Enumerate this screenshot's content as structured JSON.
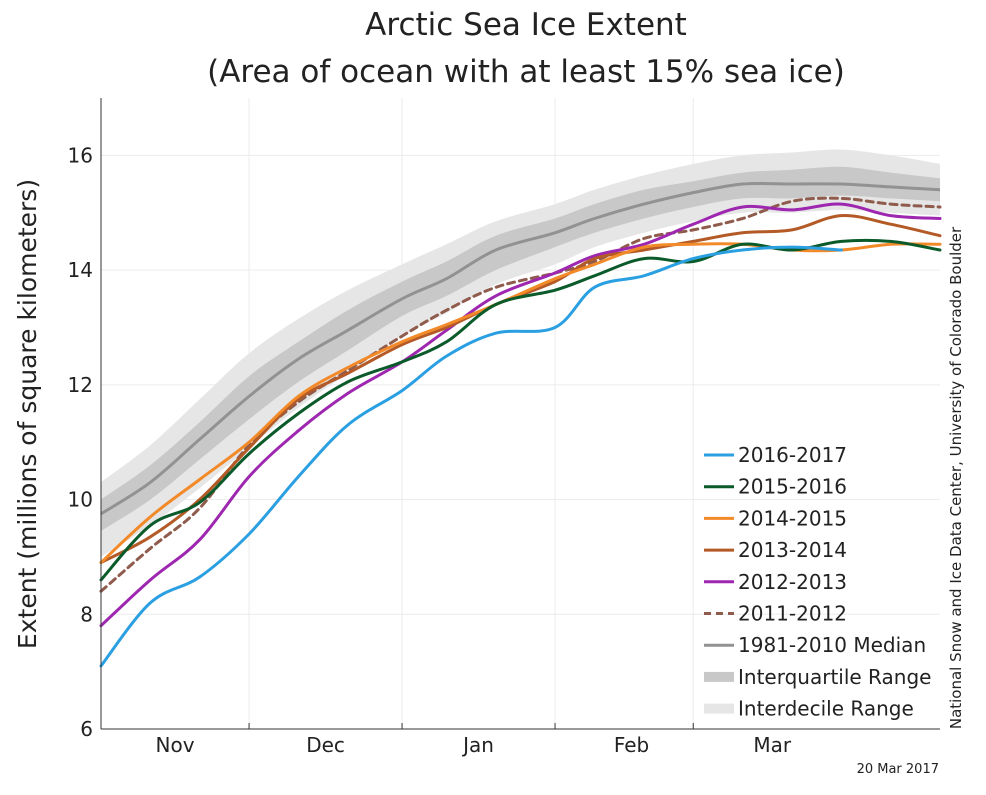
{
  "chart_data": {
    "type": "line",
    "title_line1": "Arctic Sea Ice Extent",
    "title_line2": "(Area of ocean with at least 15% sea ice)",
    "ylabel": "Extent (millions of square kilometers)",
    "credit": "National Snow and Ice Data Center, University of Colorado Boulder",
    "date_stamp": "20 Mar 2017",
    "xlim": [
      0,
      170
    ],
    "ylim": [
      6,
      17
    ],
    "yticks": [
      6,
      8,
      10,
      12,
      14,
      16
    ],
    "month_labels": [
      {
        "label": "Nov",
        "x": 15
      },
      {
        "label": "Dec",
        "x": 45.5
      },
      {
        "label": "Jan",
        "x": 76.5
      },
      {
        "label": "Feb",
        "x": 107.5
      },
      {
        "label": "Mar",
        "x": 136
      }
    ],
    "month_boundaries": [
      30,
      61,
      92,
      120
    ],
    "grid": true,
    "legend_position": "bottom-right",
    "x": [
      0,
      10,
      20,
      30,
      40,
      50,
      61,
      70,
      80,
      92,
      100,
      110,
      120,
      130,
      140,
      150,
      160,
      170
    ],
    "median": [
      9.75,
      10.3,
      11.05,
      11.8,
      12.45,
      12.95,
      13.5,
      13.85,
      14.35,
      14.65,
      14.9,
      15.15,
      15.35,
      15.5,
      15.5,
      15.5,
      15.45,
      15.4
    ],
    "interquartile_lower": [
      9.45,
      10.0,
      10.7,
      11.4,
      12.05,
      12.6,
      13.2,
      13.55,
      14.0,
      14.4,
      14.65,
      14.9,
      15.1,
      15.25,
      15.25,
      15.3,
      15.25,
      15.2
    ],
    "interquartile_upper": [
      10.0,
      10.6,
      11.35,
      12.15,
      12.75,
      13.3,
      13.8,
      14.15,
      14.6,
      14.9,
      15.15,
      15.4,
      15.55,
      15.7,
      15.75,
      15.8,
      15.7,
      15.6
    ],
    "interdecile_lower": [
      9.0,
      9.55,
      10.2,
      10.9,
      11.6,
      12.2,
      12.85,
      13.25,
      13.75,
      14.1,
      14.4,
      14.65,
      14.85,
      15.0,
      15.0,
      15.05,
      15.0,
      14.95
    ],
    "interdecile_upper": [
      10.3,
      10.95,
      11.75,
      12.55,
      13.15,
      13.65,
      14.1,
      14.45,
      14.85,
      15.15,
      15.4,
      15.65,
      15.85,
      16.0,
      16.05,
      16.1,
      16.0,
      15.85
    ],
    "series": [
      {
        "name": "2016-2017",
        "color": "#2a9fe1",
        "dashed": false,
        "values": [
          7.1,
          8.2,
          8.65,
          9.4,
          10.4,
          11.3,
          11.9,
          12.5,
          12.9,
          13.0,
          13.7,
          13.9,
          14.2,
          14.35,
          14.4,
          14.35,
          null,
          null
        ]
      },
      {
        "name": "2015-2016",
        "color": "#0b5a2a",
        "dashed": false,
        "values": [
          8.6,
          9.55,
          9.95,
          10.8,
          11.5,
          12.05,
          12.4,
          12.75,
          13.4,
          13.65,
          13.9,
          14.2,
          14.15,
          14.45,
          14.35,
          14.5,
          14.5,
          14.35
        ]
      },
      {
        "name": "2014-2015",
        "color": "#f28a2a",
        "dashed": false,
        "values": [
          8.9,
          9.7,
          10.35,
          11.0,
          11.8,
          12.3,
          12.75,
          13.05,
          13.4,
          13.85,
          14.1,
          14.4,
          14.45,
          14.45,
          14.35,
          14.35,
          14.45,
          14.45
        ]
      },
      {
        "name": "2013-2014",
        "color": "#b35a27",
        "dashed": false,
        "values": [
          8.9,
          9.35,
          10.0,
          10.9,
          11.75,
          12.2,
          12.7,
          13.0,
          13.4,
          13.8,
          14.2,
          14.35,
          14.5,
          14.65,
          14.7,
          14.95,
          14.8,
          14.6
        ]
      },
      {
        "name": "2012-2013",
        "color": "#9e27b0",
        "dashed": false,
        "values": [
          7.8,
          8.6,
          9.3,
          10.4,
          11.2,
          11.85,
          12.4,
          12.95,
          13.55,
          13.95,
          14.25,
          14.45,
          14.8,
          15.1,
          15.05,
          15.15,
          14.95,
          14.9
        ]
      },
      {
        "name": "2011-2012",
        "color": "#8f5b4c",
        "dashed": true,
        "values": [
          8.4,
          9.15,
          9.85,
          10.95,
          11.7,
          12.25,
          12.85,
          13.3,
          13.7,
          13.95,
          14.15,
          14.55,
          14.7,
          14.9,
          15.2,
          15.25,
          15.15,
          15.1
        ]
      }
    ],
    "legend": [
      {
        "label": "2016-2017",
        "kind": "line",
        "color": "#2a9fe1"
      },
      {
        "label": "2015-2016",
        "kind": "line",
        "color": "#0b5a2a"
      },
      {
        "label": "2014-2015",
        "kind": "line",
        "color": "#f28a2a"
      },
      {
        "label": "2013-2014",
        "kind": "line",
        "color": "#b35a27"
      },
      {
        "label": "2012-2013",
        "kind": "line",
        "color": "#9e27b0"
      },
      {
        "label": "2011-2012",
        "kind": "dash",
        "color": "#8f5b4c"
      },
      {
        "label": "1981-2010 Median",
        "kind": "line",
        "color": "#929292"
      },
      {
        "label": "Interquartile Range",
        "kind": "band",
        "color": "#c8c8c8"
      },
      {
        "label": "Interdecile Range",
        "kind": "band",
        "color": "#e6e6e6"
      }
    ],
    "colors": {
      "median": "#929292",
      "interquartile": "#c8c8c8",
      "interdecile": "#e6e6e6",
      "grid": "#ececec",
      "axis": "#333333"
    }
  }
}
